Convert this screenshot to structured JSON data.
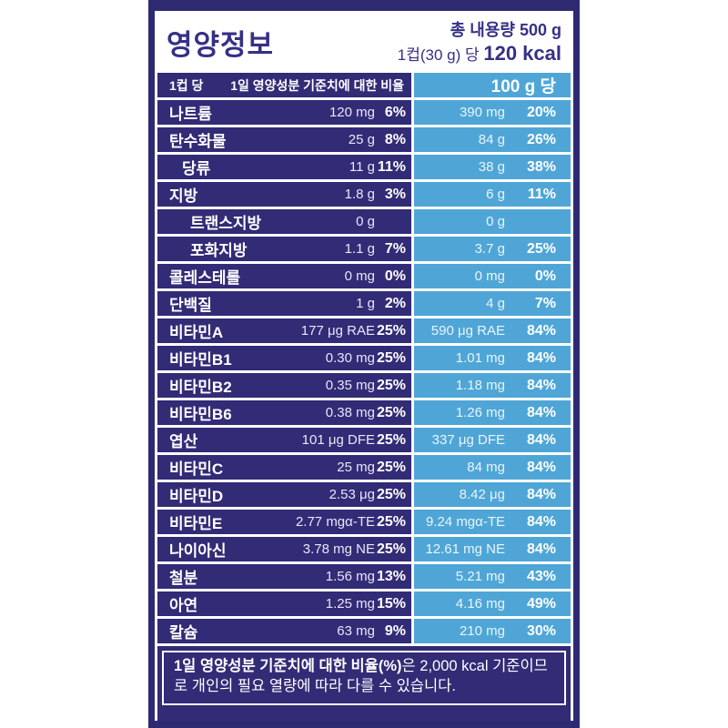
{
  "label": {
    "title": "영양정보",
    "header_right": {
      "total": "총 내용량 500 g",
      "per_serving": "1컵(30 g) 당 ",
      "kcal": "120 kcal"
    },
    "colors": {
      "navy": "#322b76",
      "light_blue": "#4fa6d6",
      "title_text": "#353086",
      "text_on_dark": "#ffffff"
    },
    "table": {
      "header": {
        "per_cup": "1컵 당",
        "daily_value_note": "1일 영양성분 기준치에 대한 비율",
        "per_100g": "100 g 당"
      },
      "rows": [
        {
          "name": "나트륨",
          "indent": 0,
          "amount": "120 mg",
          "percent": "6%",
          "amount_100g": "390 mg",
          "percent_100g": "20%"
        },
        {
          "name": "탄수화물",
          "indent": 0,
          "amount": "25 g",
          "percent": "8%",
          "amount_100g": "84 g",
          "percent_100g": "26%"
        },
        {
          "name": "당류",
          "indent": 1,
          "amount": "11 g",
          "percent": "11%",
          "amount_100g": "38 g",
          "percent_100g": "38%"
        },
        {
          "name": "지방",
          "indent": 0,
          "amount": "1.8 g",
          "percent": "3%",
          "amount_100g": "6 g",
          "percent_100g": "11%"
        },
        {
          "name": "트랜스지방",
          "indent": 2,
          "amount": "0 g",
          "percent": "",
          "amount_100g": "0 g",
          "percent_100g": ""
        },
        {
          "name": "포화지방",
          "indent": 2,
          "amount": "1.1 g",
          "percent": "7%",
          "amount_100g": "3.7 g",
          "percent_100g": "25%"
        },
        {
          "name": "콜레스테롤",
          "indent": 0,
          "amount": "0 mg",
          "percent": "0%",
          "amount_100g": "0 mg",
          "percent_100g": "0%"
        },
        {
          "name": "단백질",
          "indent": 0,
          "amount": "1 g",
          "percent": "2%",
          "amount_100g": "4 g",
          "percent_100g": "7%"
        },
        {
          "name": "비타민A",
          "indent": 0,
          "amount": "177 μg RAE",
          "percent": "25%",
          "amount_100g": "590 μg RAE",
          "percent_100g": "84%"
        },
        {
          "name": "비타민B1",
          "indent": 0,
          "amount": "0.30 mg",
          "percent": "25%",
          "amount_100g": "1.01 mg",
          "percent_100g": "84%"
        },
        {
          "name": "비타민B2",
          "indent": 0,
          "amount": "0.35 mg",
          "percent": "25%",
          "amount_100g": "1.18 mg",
          "percent_100g": "84%"
        },
        {
          "name": "비타민B6",
          "indent": 0,
          "amount": "0.38 mg",
          "percent": "25%",
          "amount_100g": "1.26 mg",
          "percent_100g": "84%"
        },
        {
          "name": "엽산",
          "indent": 0,
          "amount": "101 μg DFE",
          "percent": "25%",
          "amount_100g": "337 μg DFE",
          "percent_100g": "84%"
        },
        {
          "name": "비타민C",
          "indent": 0,
          "amount": "25 mg",
          "percent": "25%",
          "amount_100g": "84 mg",
          "percent_100g": "84%"
        },
        {
          "name": "비타민D",
          "indent": 0,
          "amount": "2.53 μg",
          "percent": "25%",
          "amount_100g": "8.42 μg",
          "percent_100g": "84%"
        },
        {
          "name": "비타민E",
          "indent": 0,
          "amount": "2.77 mgα-TE",
          "percent": "25%",
          "amount_100g": "9.24 mgα-TE",
          "percent_100g": "84%"
        },
        {
          "name": "나이아신",
          "indent": 0,
          "amount": "3.78 mg NE",
          "percent": "25%",
          "amount_100g": "12.61 mg NE",
          "percent_100g": "84%"
        },
        {
          "name": "철분",
          "indent": 0,
          "amount": "1.56 mg",
          "percent": "13%",
          "amount_100g": "5.21 mg",
          "percent_100g": "43%"
        },
        {
          "name": "아연",
          "indent": 0,
          "amount": "1.25 mg",
          "percent": "15%",
          "amount_100g": "4.16 mg",
          "percent_100g": "49%"
        },
        {
          "name": "칼슘",
          "indent": 0,
          "amount": "63 mg",
          "percent": "9%",
          "amount_100g": "210 mg",
          "percent_100g": "30%"
        }
      ]
    },
    "footnote": {
      "bold": "1일 영양성분 기준치에 대한 비율(%)",
      "rest": "은 2,000 kcal 기준이므로 개인의 필요 열량에 따라 다를 수 있습니다."
    }
  }
}
